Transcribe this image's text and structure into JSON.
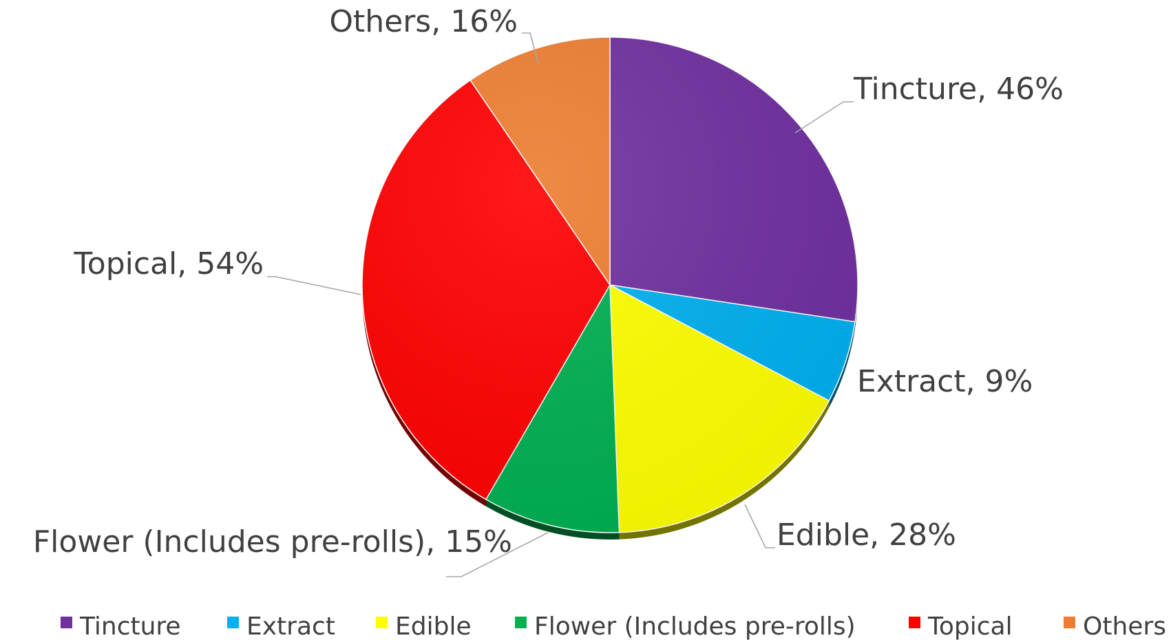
{
  "chart_data": {
    "type": "pie",
    "title": "",
    "slices": [
      {
        "name": "Tincture",
        "value": 46,
        "label": "Tincture, 46%",
        "color": "#7030a0"
      },
      {
        "name": "Extract",
        "value": 9,
        "label": "Extract, 9%",
        "color": "#00b0f0"
      },
      {
        "name": "Edible",
        "value": 28,
        "label": "Edible, 28%",
        "color": "#ffff00"
      },
      {
        "name": "Flower (Includes pre-rolls)",
        "value": 15,
        "label": "Flower (Includes pre-rolls), 15%",
        "color": "#00b050"
      },
      {
        "name": "Topical",
        "value": 54,
        "label": "Topical, 54%",
        "color": "#ff0000"
      },
      {
        "name": "Others",
        "value": 16,
        "label": "Others, 16%",
        "color": "#ed7d31"
      }
    ],
    "legend_position": "bottom"
  }
}
